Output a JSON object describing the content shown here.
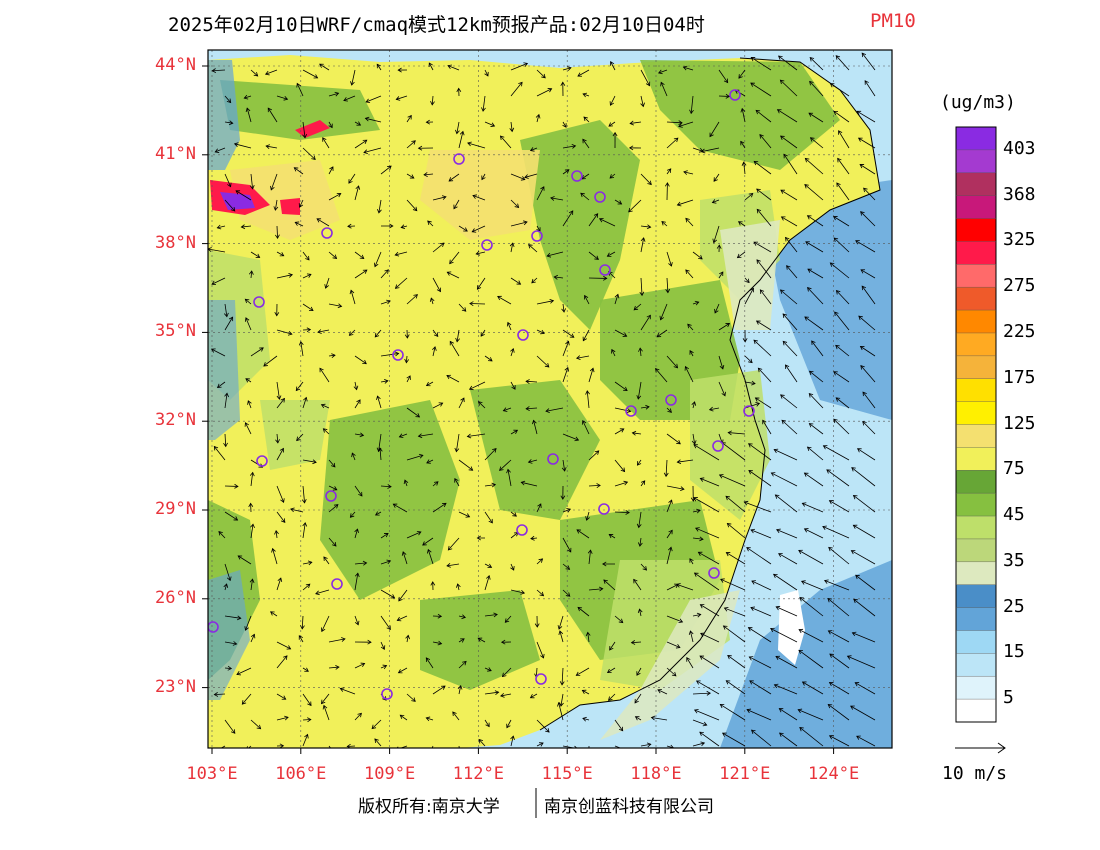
{
  "title": "2025年02月10日WRF/cmaq模式12km预报产品:02月10日04时",
  "variable": "PM10",
  "latitude_labels": [
    "44°N",
    "41°N",
    "38°N",
    "35°N",
    "32°N",
    "29°N",
    "26°N",
    "23°N"
  ],
  "longitude_labels": [
    "103°E",
    "106°E",
    "109°E",
    "112°E",
    "115°E",
    "118°E",
    "121°E",
    "124°E"
  ],
  "colorbar": {
    "units": "(ug/m3)",
    "labels": [
      "403",
      "368",
      "325",
      "275",
      "225",
      "175",
      "125",
      "75",
      "45",
      "35",
      "25",
      "15",
      "5"
    ],
    "colors": [
      "#8a2be2",
      "#a43ad0",
      "#b0305f",
      "#c8187a",
      "#ff0000",
      "#ff1a4a",
      "#ff6a6a",
      "#ef5a2a",
      "#ff8800",
      "#ffaa22",
      "#f5b33a",
      "#ffe000",
      "#fff000",
      "#f4e070",
      "#f1f05a",
      "#67a636",
      "#86c040",
      "#bedf6a",
      "#bcd77a",
      "#dde9bf",
      "#4a8ec8",
      "#62a4d8",
      "#9ed8f4",
      "#bce5f7",
      "#dff3fb",
      "#ffffff"
    ]
  },
  "map": {
    "lon_range": [
      103,
      124
    ],
    "lat_range": [
      21,
      44.5
    ],
    "colors": {
      "land_green": "#86c040",
      "light_green": "#bedf6a",
      "pale_green": "#dde9bf",
      "yellow": "#f1f05a",
      "yellow_orange": "#f4e070",
      "orange": "#ffaa22",
      "hot": "#ff1a4a",
      "purple": "#8a2be2",
      "sea_light": "#bce5f7",
      "sea_mid": "#62a4d8",
      "sea_dark": "#4a8ec8"
    },
    "station_color": "#8a2be2"
  },
  "wind_reference": "10 m/s",
  "footer": {
    "left": "版权所有:南京大学",
    "right": "南京创蓝科技有限公司"
  }
}
